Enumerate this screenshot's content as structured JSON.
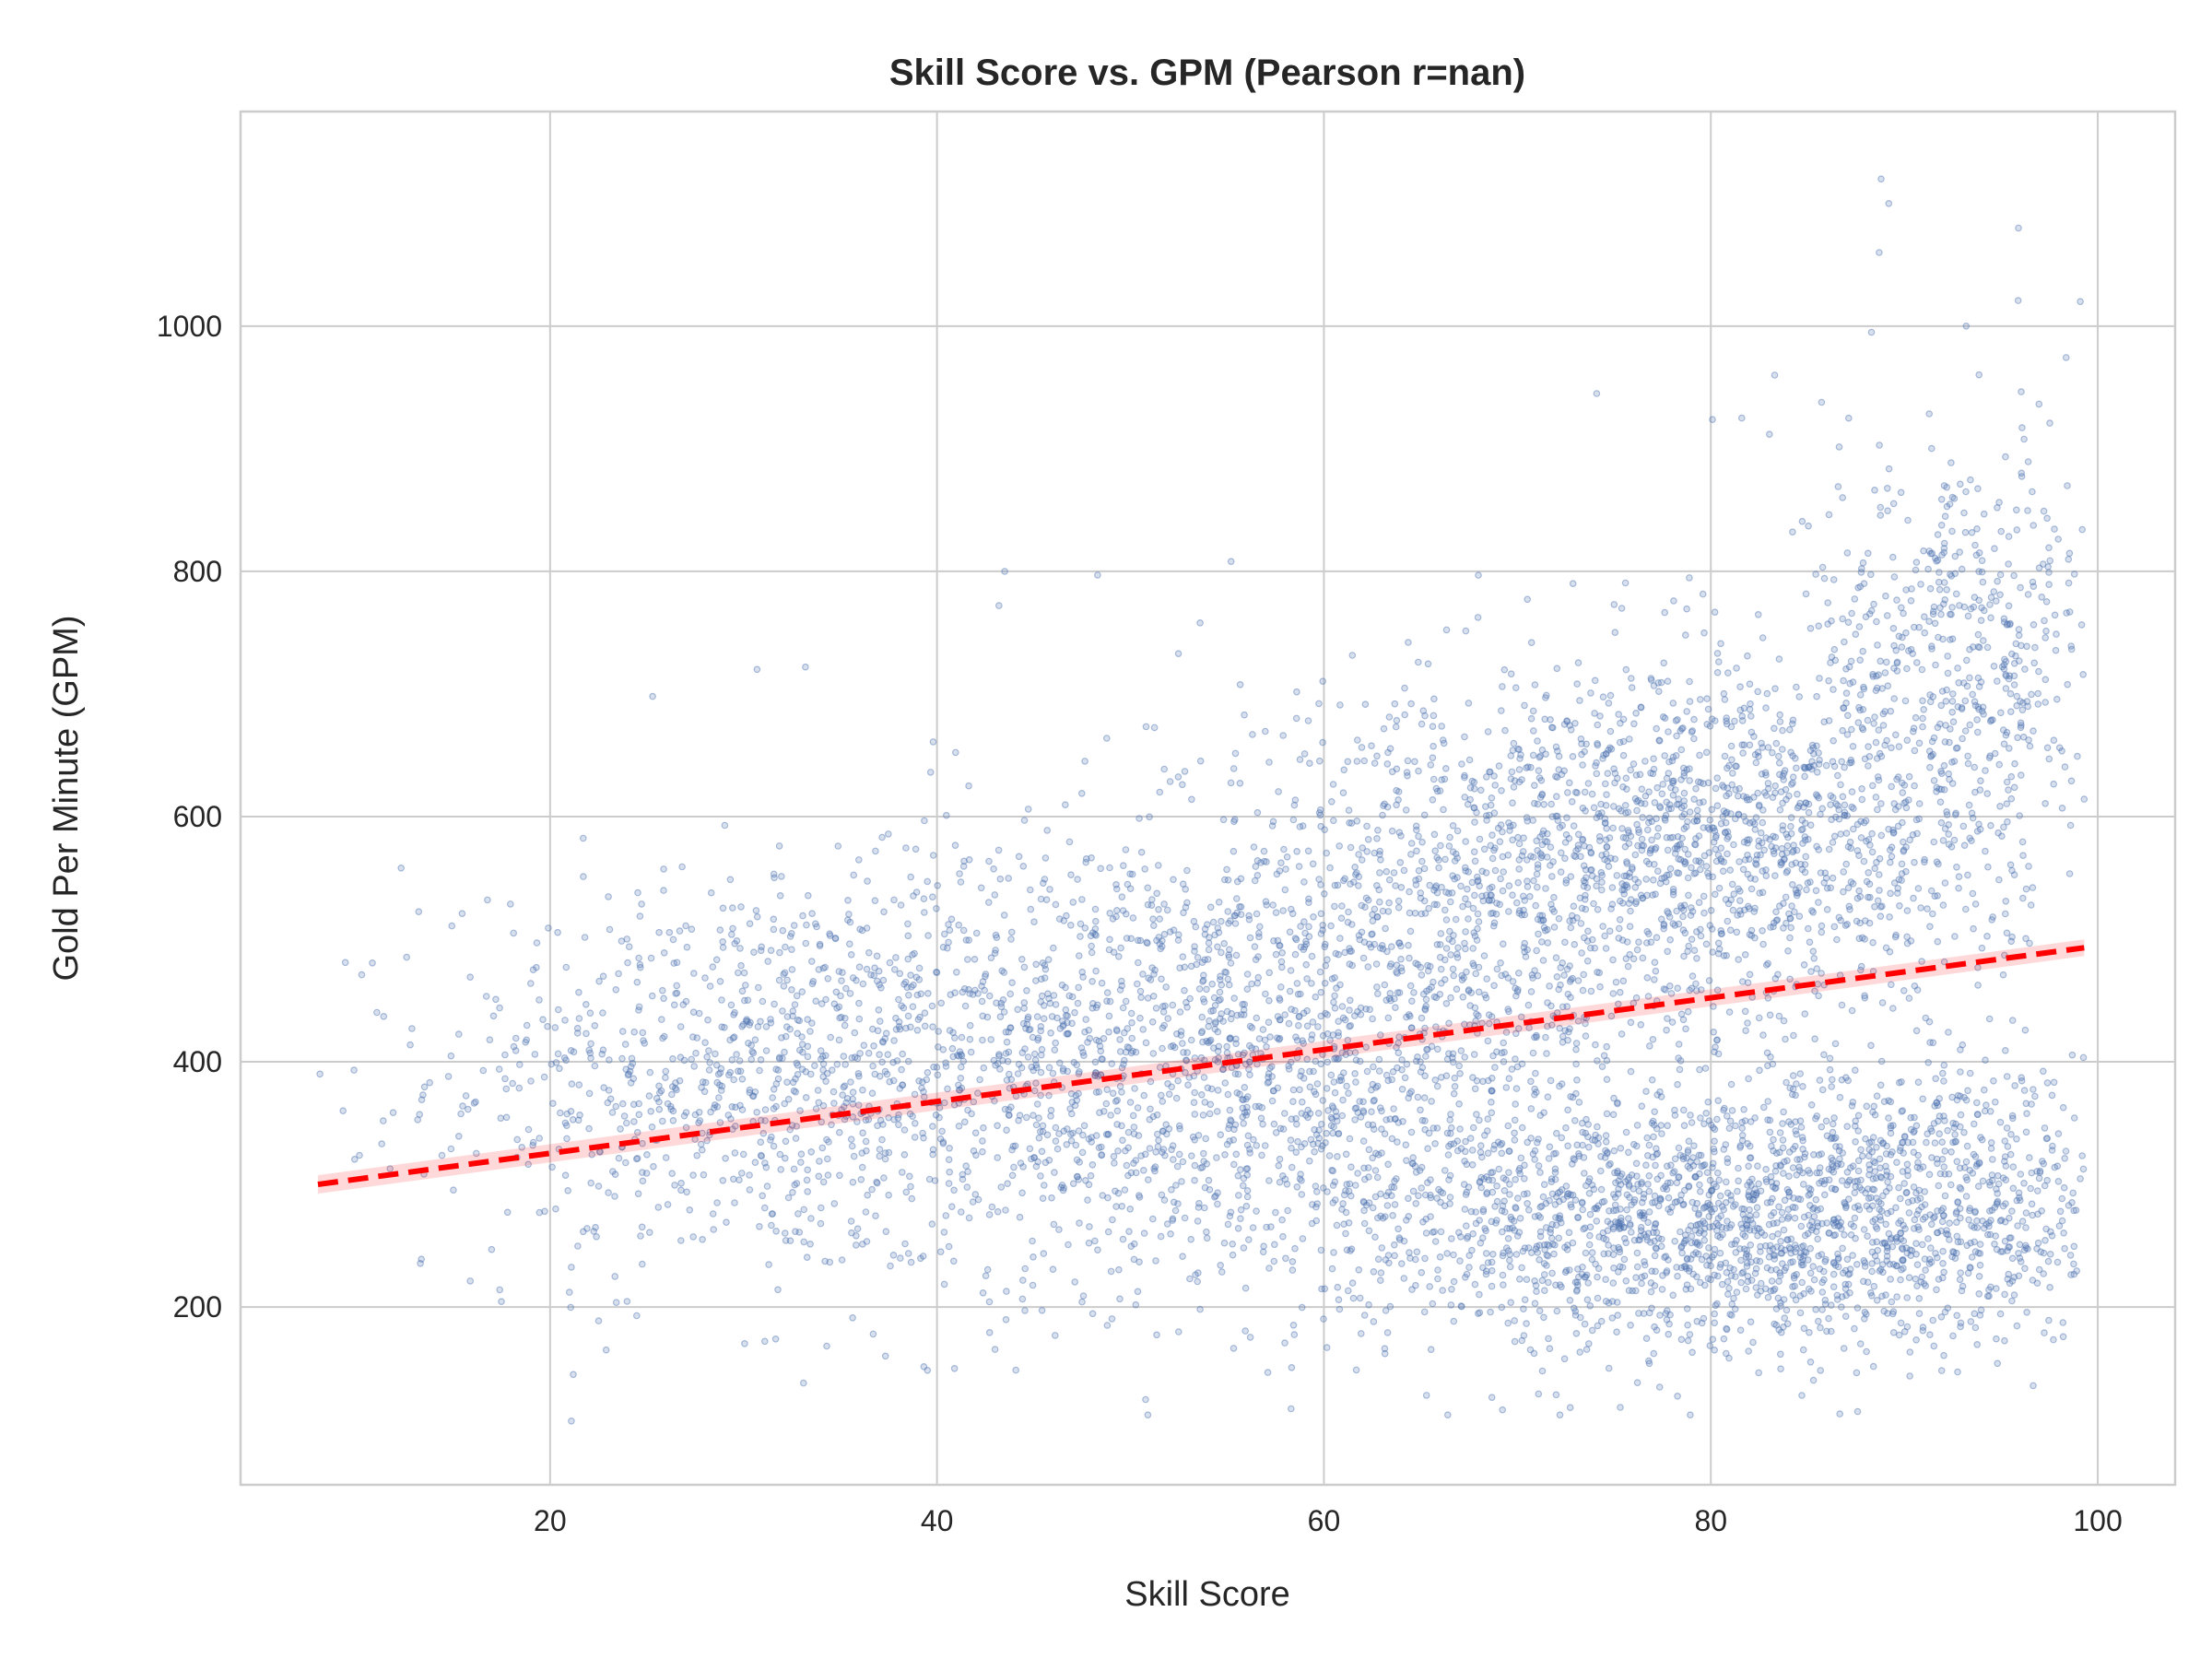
{
  "chart_data": {
    "type": "scatter",
    "title": "Skill Score vs. GPM (Pearson r=nan)",
    "xlabel": "Skill Score",
    "ylabel": "Gold Per Minute (GPM)",
    "xlim": [
      4,
      104
    ],
    "ylim": [
      55,
      1175
    ],
    "xticks": [
      20,
      40,
      60,
      80,
      100
    ],
    "yticks": [
      200,
      400,
      600,
      800,
      1000
    ],
    "grid": true,
    "point_color": "#4c72b0",
    "trend_color": "#ff0000",
    "trend_line": {
      "style": "dashed",
      "x": [
        8,
        99.3
      ],
      "y": [
        300,
        493
      ]
    },
    "clusters": [
      {
        "cx": 30,
        "cy": 390,
        "sx": 8,
        "sy": 80,
        "n": 800
      },
      {
        "cx": 50,
        "cy": 400,
        "sx": 9,
        "sy": 95,
        "n": 1300
      },
      {
        "cx": 65,
        "cy": 470,
        "sx": 8,
        "sy": 110,
        "n": 900
      },
      {
        "cx": 80,
        "cy": 580,
        "sx": 8,
        "sy": 70,
        "n": 1400
      },
      {
        "cx": 93,
        "cy": 740,
        "sx": 4,
        "sy": 85,
        "n": 500
      },
      {
        "cx": 80,
        "cy": 270,
        "sx": 10,
        "sy": 55,
        "n": 1700
      },
      {
        "cx": 92,
        "cy": 300,
        "sx": 5,
        "sy": 60,
        "n": 400
      }
    ],
    "outliers": [
      [
        88.8,
        1120
      ],
      [
        89.2,
        1100
      ],
      [
        95.9,
        1080
      ],
      [
        88.7,
        1060
      ],
      [
        99.1,
        1020
      ],
      [
        93.2,
        1000
      ],
      [
        88.3,
        995
      ],
      [
        74.1,
        945
      ],
      [
        83.3,
        960
      ],
      [
        81.6,
        925
      ],
      [
        55.2,
        808
      ],
      [
        43.5,
        800
      ],
      [
        48.3,
        797
      ],
      [
        43.2,
        772
      ],
      [
        53.6,
        758
      ],
      [
        25.3,
        698
      ],
      [
        30.7,
        720
      ],
      [
        33.2,
        722
      ],
      [
        12.3,
        558
      ],
      [
        8.1,
        390
      ],
      [
        9.3,
        360
      ],
      [
        11.4,
        437
      ],
      [
        21.0,
        212
      ],
      [
        21.2,
        145
      ],
      [
        21.1,
        107
      ],
      [
        50.9,
        112
      ],
      [
        58.3,
        117
      ],
      [
        66.4,
        112
      ],
      [
        72.2,
        112
      ],
      [
        33.1,
        138
      ],
      [
        36.7,
        178
      ],
      [
        31.1,
        172
      ],
      [
        22.9,
        165
      ]
    ]
  }
}
